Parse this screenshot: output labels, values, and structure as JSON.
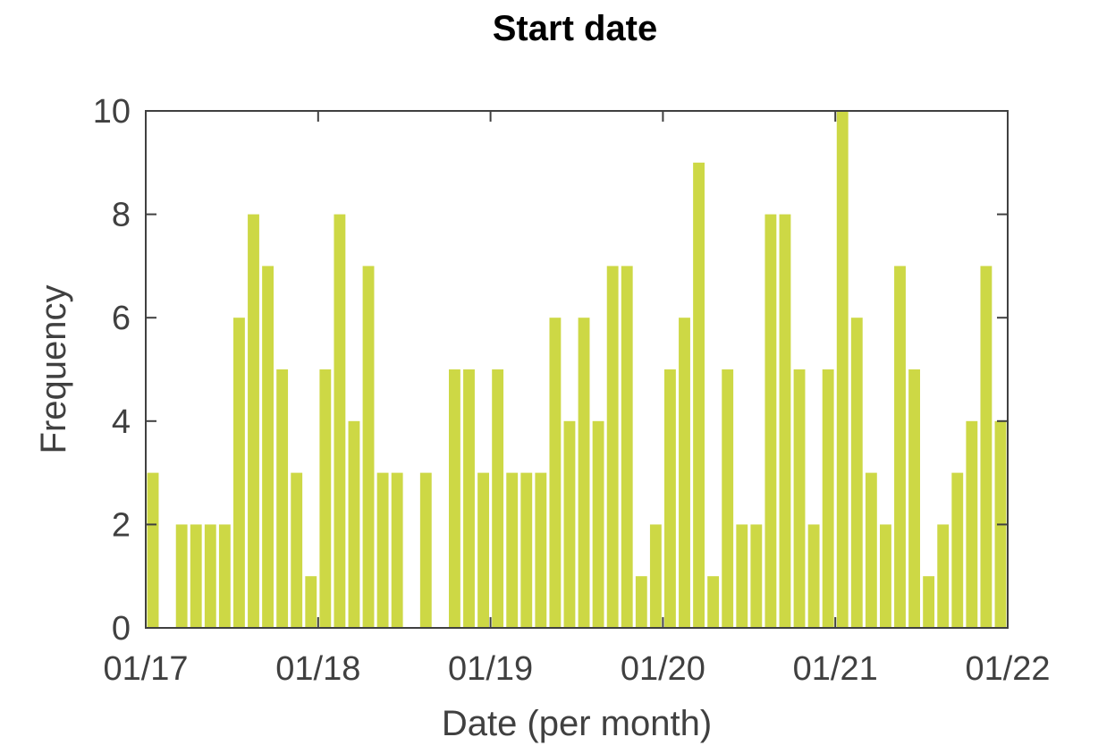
{
  "chart_data": {
    "type": "bar",
    "title": "Start date",
    "xlabel": "Date (per month)",
    "ylabel": "Frequency",
    "ylim": [
      0,
      10
    ],
    "yticks": [
      0,
      2,
      4,
      6,
      8,
      10
    ],
    "xticks": [
      {
        "date": "2017-01",
        "label": "01/17"
      },
      {
        "date": "2018-01",
        "label": "01/18"
      },
      {
        "date": "2019-01",
        "label": "01/19"
      },
      {
        "date": "2020-01",
        "label": "01/20"
      },
      {
        "date": "2021-01",
        "label": "01/21"
      },
      {
        "date": "2022-01",
        "label": "01/22"
      }
    ],
    "categories": [
      "2017-01",
      "2017-02",
      "2017-03",
      "2017-04",
      "2017-05",
      "2017-06",
      "2017-07",
      "2017-08",
      "2017-09",
      "2017-10",
      "2017-11",
      "2017-12",
      "2018-01",
      "2018-02",
      "2018-03",
      "2018-04",
      "2018-05",
      "2018-06",
      "2018-07",
      "2018-08",
      "2018-09",
      "2018-10",
      "2018-11",
      "2018-12",
      "2019-01",
      "2019-02",
      "2019-03",
      "2019-04",
      "2019-05",
      "2019-06",
      "2019-07",
      "2019-08",
      "2019-09",
      "2019-10",
      "2019-11",
      "2019-12",
      "2020-01",
      "2020-02",
      "2020-03",
      "2020-04",
      "2020-05",
      "2020-06",
      "2020-07",
      "2020-08",
      "2020-09",
      "2020-10",
      "2020-11",
      "2020-12",
      "2021-01",
      "2021-02",
      "2021-03",
      "2021-04",
      "2021-05",
      "2021-06",
      "2021-07",
      "2021-08",
      "2021-09",
      "2021-10",
      "2021-11",
      "2021-12"
    ],
    "values": [
      3,
      0,
      2,
      2,
      2,
      2,
      6,
      8,
      7,
      5,
      3,
      1,
      5,
      8,
      4,
      7,
      3,
      3,
      0,
      3,
      0,
      5,
      5,
      3,
      5,
      3,
      3,
      3,
      6,
      4,
      6,
      4,
      7,
      7,
      1,
      2,
      5,
      6,
      9,
      1,
      5,
      2,
      2,
      8,
      8,
      5,
      2,
      5,
      10,
      6,
      3,
      2,
      7,
      5,
      1,
      2,
      3,
      4,
      7,
      4
    ],
    "bar_color": "#cdd845",
    "axis_color": "#404040",
    "grid": false
  }
}
